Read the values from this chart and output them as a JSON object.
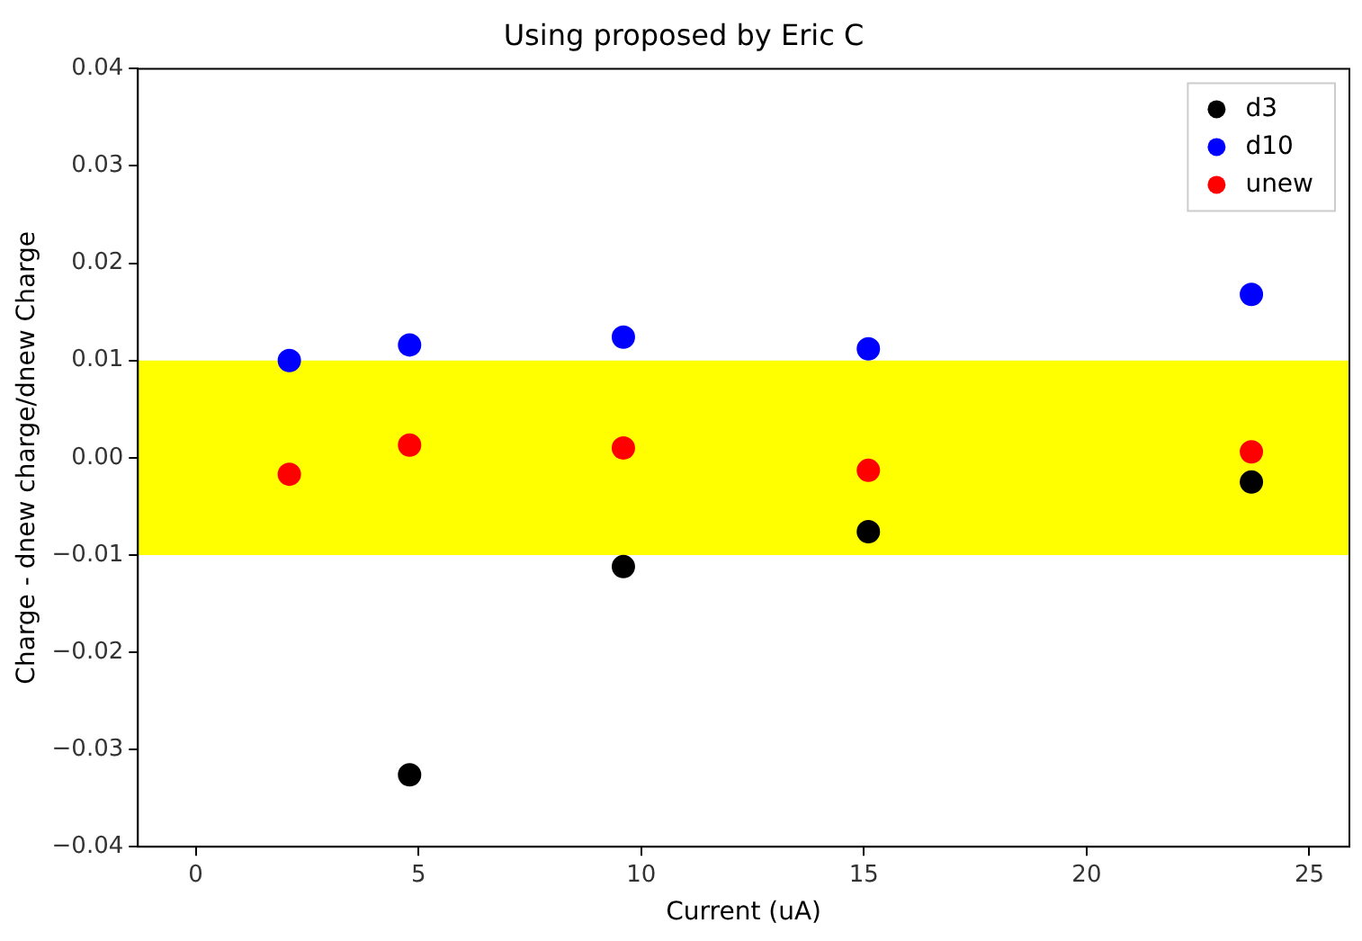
{
  "chart_data": {
    "type": "scatter",
    "title": "Using proposed by Eric C",
    "xlabel": "Current (uA)",
    "ylabel": "Charge - dnew charge/dnew Charge",
    "xlim": [
      -1.3,
      25.9
    ],
    "xticks": [
      0,
      5,
      10,
      15,
      20,
      25
    ],
    "ylim": [
      -0.04,
      0.04
    ],
    "yticks": [
      {
        "value": -0.04,
        "label": "−0.04"
      },
      {
        "value": -0.03,
        "label": "−0.03"
      },
      {
        "value": -0.02,
        "label": "−0.02"
      },
      {
        "value": -0.01,
        "label": "−0.01"
      },
      {
        "value": 0,
        "label": "0.00"
      },
      {
        "value": 0.01,
        "label": "0.01"
      },
      {
        "value": 0.02,
        "label": "0.02"
      },
      {
        "value": 0.03,
        "label": "0.03"
      },
      {
        "value": 0.04,
        "label": "0.04"
      }
    ],
    "bands": [
      {
        "axis": "y",
        "from": -0.01,
        "to": 0.01,
        "color": "#ffff00"
      }
    ],
    "grid": false,
    "legend": "top right",
    "marker": "circle",
    "series": [
      {
        "name": "d3",
        "color": "#000000",
        "x": [
          4.8,
          9.6,
          15.1,
          23.7
        ],
        "values": [
          -0.0326,
          -0.0112,
          -0.0076,
          -0.0025
        ]
      },
      {
        "name": "d10",
        "color": "#0000ff",
        "x": [
          2.1,
          4.8,
          9.6,
          15.1,
          23.7
        ],
        "values": [
          0.01,
          0.0116,
          0.0124,
          0.0112,
          0.0168
        ]
      },
      {
        "name": "unew",
        "color": "#ff0000",
        "x": [
          2.1,
          4.8,
          9.6,
          15.1,
          23.7
        ],
        "values": [
          -0.0017,
          0.0013,
          0.001,
          -0.0013,
          0.0006
        ]
      }
    ]
  }
}
